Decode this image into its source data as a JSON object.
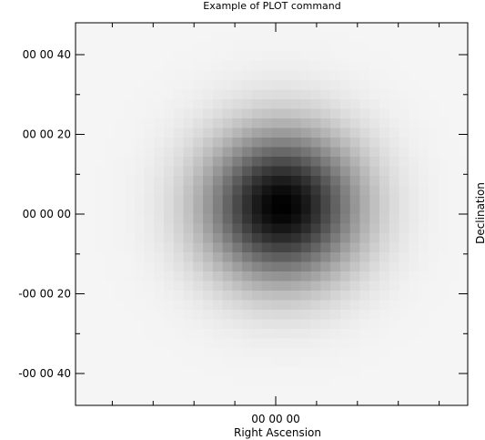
{
  "chart_data": {
    "type": "heatmap",
    "title": "Example of PLOT command",
    "xlabel": "Right Ascension",
    "ylabel": "Declination",
    "x_ticks": [
      {
        "value": 0,
        "label": "00 00 00"
      }
    ],
    "y_ticks": [
      {
        "value": 40,
        "label": "00 00 40"
      },
      {
        "value": 20,
        "label": "00 00 20"
      },
      {
        "value": 0,
        "label": "00 00 00"
      },
      {
        "value": -20,
        "label": "-00 00 20"
      },
      {
        "value": -40,
        "label": "-00 00 40"
      }
    ],
    "xlim": [
      -49,
      47
    ],
    "ylim": [
      -48,
      48
    ],
    "grid": false,
    "colormap": "grayscale (white = low, black = high)",
    "source": {
      "type": "2D Gaussian",
      "center": [
        1.5,
        2
      ],
      "sigma_arcsec": 13
    },
    "colors": {
      "background": "#ffffff",
      "frame": "#000000"
    }
  }
}
